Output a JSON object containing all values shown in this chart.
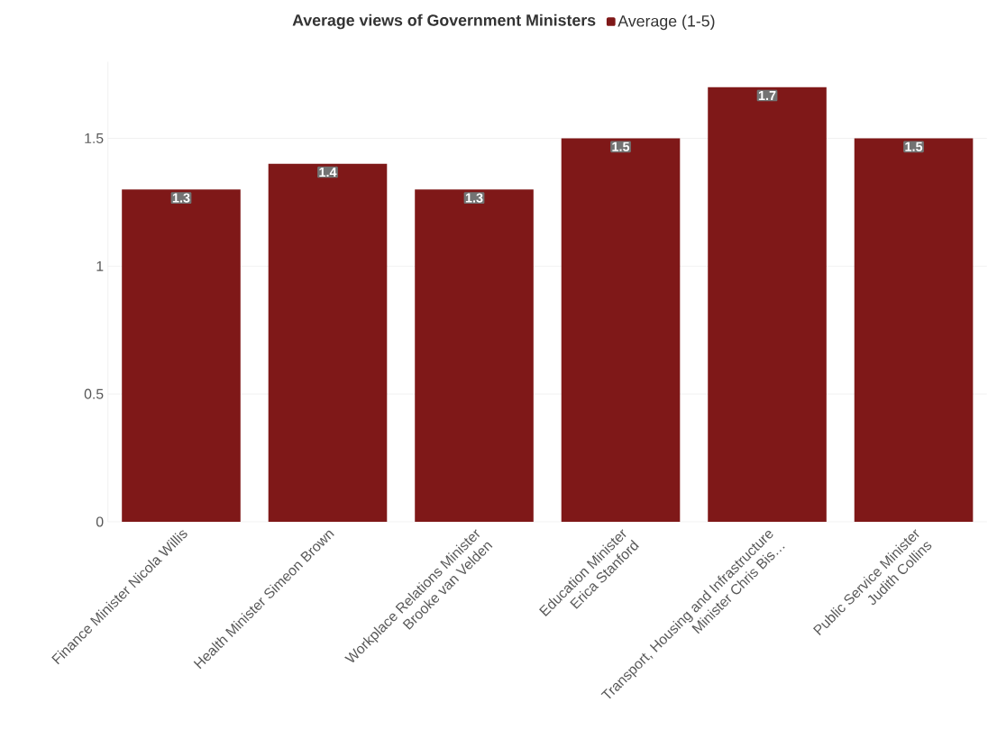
{
  "chart_data": {
    "type": "bar",
    "title": "Average views of Government Ministers",
    "categories": [
      "Finance Minister Nicola Willis",
      "Health Minister Simeon Brown",
      "Workplace Relations Minister Brooke van Velden",
      "Education Minister Erica Stanford",
      "Transport, Housing and Infrastructure Minister Chris Bis…",
      "Public Service Minister Judith Collins"
    ],
    "series": [
      {
        "name": "Average (1-5)",
        "color": "#7f1818",
        "values": [
          1.3,
          1.4,
          1.3,
          1.5,
          1.7,
          1.5
        ]
      }
    ],
    "ylim": [
      0,
      1.8
    ],
    "yticks": [
      0,
      0.5,
      1,
      1.5
    ],
    "grid": "y",
    "legend": "top",
    "data_labels": true
  }
}
